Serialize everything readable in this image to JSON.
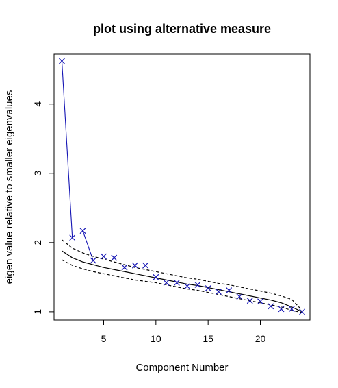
{
  "chart_data": {
    "type": "scatter",
    "title": "plot using alternative measure",
    "xlabel": "Component Number",
    "ylabel": "eigen value relative to smaller eigenvalues",
    "xlim": [
      0.25,
      24.75
    ],
    "ylim": [
      0.88,
      4.72
    ],
    "x_ticks": [
      5,
      10,
      15,
      20
    ],
    "y_ticks": [
      1,
      2,
      3,
      4
    ],
    "grid": false,
    "legend": "none",
    "series": [
      {
        "style": "points-x",
        "color": "#1414b4",
        "x": [
          1,
          2,
          3,
          4,
          5,
          6,
          7,
          8,
          9,
          10,
          11,
          12,
          13,
          14,
          15,
          16,
          17,
          18,
          19,
          20,
          21,
          22,
          23,
          24
        ],
        "y": [
          4.62,
          2.07,
          2.17,
          1.74,
          1.8,
          1.78,
          1.64,
          1.67,
          1.67,
          1.5,
          1.42,
          1.42,
          1.37,
          1.39,
          1.34,
          1.29,
          1.31,
          1.22,
          1.16,
          1.15,
          1.08,
          1.04,
          1.04,
          1.0
        ]
      },
      {
        "style": "segments",
        "color": "#1414b4",
        "segments": [
          [
            1,
            2
          ],
          [
            3,
            4
          ]
        ]
      },
      {
        "style": "solid-line",
        "color": "#000000",
        "x": [
          1,
          2,
          3,
          4,
          5,
          6,
          7,
          8,
          9,
          10,
          11,
          12,
          13,
          14,
          15,
          16,
          17,
          18,
          19,
          20,
          21,
          22,
          23,
          24
        ],
        "y": [
          1.88,
          1.78,
          1.72,
          1.68,
          1.64,
          1.61,
          1.58,
          1.55,
          1.52,
          1.49,
          1.46,
          1.43,
          1.4,
          1.38,
          1.35,
          1.32,
          1.29,
          1.26,
          1.23,
          1.2,
          1.17,
          1.13,
          1.07,
          1.0
        ]
      },
      {
        "style": "dashed-line",
        "color": "#000000",
        "x": [
          1,
          2,
          3,
          4,
          5,
          6,
          7,
          8,
          9,
          10,
          11,
          12,
          13,
          14,
          15,
          16,
          17,
          18,
          19,
          20,
          21,
          22,
          23,
          24
        ],
        "y": [
          2.04,
          1.92,
          1.85,
          1.8,
          1.76,
          1.72,
          1.68,
          1.64,
          1.61,
          1.58,
          1.55,
          1.52,
          1.49,
          1.47,
          1.44,
          1.41,
          1.39,
          1.36,
          1.33,
          1.3,
          1.27,
          1.23,
          1.18,
          1.02
        ]
      },
      {
        "style": "dashed-line",
        "color": "#000000",
        "x": [
          1,
          2,
          3,
          4,
          5,
          6,
          7,
          8,
          9,
          10,
          11,
          12,
          13,
          14,
          15,
          16,
          17,
          18,
          19,
          20,
          21,
          22,
          23,
          24
        ],
        "y": [
          1.75,
          1.67,
          1.62,
          1.58,
          1.55,
          1.52,
          1.49,
          1.46,
          1.44,
          1.42,
          1.39,
          1.36,
          1.33,
          1.31,
          1.28,
          1.25,
          1.22,
          1.19,
          1.16,
          1.13,
          1.1,
          1.07,
          1.02,
          0.99
        ]
      }
    ]
  }
}
